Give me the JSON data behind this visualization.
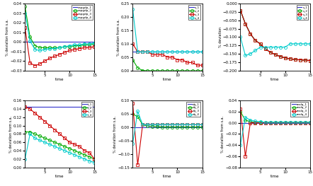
{
  "time": [
    1,
    2,
    3,
    4,
    5,
    6,
    7,
    8,
    9,
    10,
    11,
    12,
    13,
    14,
    15
  ],
  "colors": {
    "1": "#0000cc",
    "2": "#00aa00",
    "3": "#cc0000",
    "4": "#00cccc"
  },
  "markers": {
    "1": "none",
    "2": "o",
    "3": "s",
    "4": "o"
  },
  "panel_top_left": {
    "ylabel": "% deviation from s.a.",
    "xlabel": "time",
    "ylim": [
      -0.03,
      0.04
    ],
    "legend_labels": [
      "capgdp_1",
      "capgdp_2",
      "capgdp_3",
      "capgdp_4"
    ],
    "series": {
      "1": [
        0.0,
        0.0,
        0.0,
        0.0,
        0.0,
        0.0,
        0.0,
        0.0,
        0.0,
        0.0,
        0.0,
        0.0,
        0.0,
        0.0,
        0.0
      ],
      "2": [
        0.037,
        0.005,
        -0.004,
        -0.006,
        -0.006,
        -0.006,
        -0.006,
        -0.006,
        -0.005,
        -0.005,
        -0.004,
        -0.004,
        -0.003,
        -0.003,
        -0.002
      ],
      "3": [
        0.015,
        -0.022,
        -0.025,
        -0.023,
        -0.02,
        -0.017,
        -0.015,
        -0.013,
        -0.011,
        -0.009,
        -0.008,
        -0.007,
        -0.006,
        -0.006,
        -0.005
      ],
      "4": [
        0.03,
        0.001,
        -0.008,
        -0.009,
        -0.008,
        -0.007,
        -0.007,
        -0.006,
        -0.005,
        -0.004,
        -0.003,
        -0.003,
        -0.002,
        -0.002,
        -0.001
      ]
    }
  },
  "panel_top_mid": {
    "ylabel": "% deviation from s.a.",
    "xlabel": "time",
    "ylim": [
      0.0,
      0.25
    ],
    "legend_labels": [
      "x_1",
      "x_2",
      "x_3",
      "x_4"
    ],
    "series": {
      "1": [
        0.07,
        0.07,
        0.07,
        0.07,
        0.07,
        0.07,
        0.07,
        0.07,
        0.07,
        0.07,
        0.07,
        0.07,
        0.07,
        0.07,
        0.07
      ],
      "2": [
        0.04,
        0.01,
        0.0,
        -0.001,
        -0.001,
        -0.001,
        -0.001,
        -0.001,
        -0.001,
        -0.001,
        -0.001,
        -0.001,
        -0.001,
        -0.001,
        -0.001
      ],
      "3": [
        0.1,
        0.07,
        0.07,
        0.07,
        0.06,
        0.06,
        0.06,
        0.05,
        0.05,
        0.04,
        0.04,
        0.03,
        0.03,
        0.02,
        0.02
      ],
      "4": [
        0.23,
        0.07,
        0.07,
        0.07,
        0.07,
        0.07,
        0.07,
        0.07,
        0.07,
        0.07,
        0.07,
        0.07,
        0.07,
        0.07,
        0.07
      ]
    }
  },
  "panel_top_right": {
    "ylabel": "% deviation",
    "xlabel": "time",
    "ylim": [
      -0.2,
      0.0
    ],
    "legend_labels": [
      "s_1",
      "s_2",
      "s_3",
      "s_4"
    ],
    "series": {
      "1": [
        -0.02,
        -0.06,
        -0.09,
        -0.11,
        -0.12,
        -0.135,
        -0.145,
        -0.152,
        -0.158,
        -0.162,
        -0.165,
        -0.167,
        -0.168,
        -0.169,
        -0.17
      ],
      "2": [
        -0.02,
        -0.06,
        -0.09,
        -0.11,
        -0.12,
        -0.135,
        -0.145,
        -0.152,
        -0.158,
        -0.162,
        -0.165,
        -0.167,
        -0.168,
        -0.169,
        -0.17
      ],
      "3": [
        -0.02,
        -0.06,
        -0.09,
        -0.11,
        -0.12,
        -0.135,
        -0.145,
        -0.152,
        -0.158,
        -0.162,
        -0.165,
        -0.167,
        -0.168,
        -0.169,
        -0.17
      ],
      "4": [
        -0.1,
        -0.155,
        -0.15,
        -0.14,
        -0.13,
        -0.13,
        -0.13,
        -0.13,
        -0.13,
        -0.13,
        -0.12,
        -0.12,
        -0.12,
        -0.12,
        -0.12
      ]
    }
  },
  "panel_bot_left": {
    "ylabel": "% deviation from s.a.",
    "xlabel": "time",
    "ylim": [
      0.0,
      0.16
    ],
    "legend_labels": [
      "t_1",
      "t_2",
      "t_3",
      "t_4"
    ],
    "series": {
      "1": [
        0.145,
        0.145,
        0.145,
        0.145,
        0.145,
        0.145,
        0.145,
        0.145,
        0.145,
        0.145,
        0.145,
        0.145,
        0.145,
        0.145,
        0.145
      ],
      "2": [
        0.085,
        0.085,
        0.08,
        0.075,
        0.07,
        0.065,
        0.06,
        0.055,
        0.05,
        0.045,
        0.04,
        0.035,
        0.03,
        0.025,
        0.02
      ],
      "3": [
        0.145,
        0.14,
        0.13,
        0.12,
        0.11,
        0.1,
        0.09,
        0.08,
        0.07,
        0.06,
        0.055,
        0.05,
        0.04,
        0.035,
        0.02
      ],
      "4": [
        0.02,
        0.08,
        0.07,
        0.065,
        0.06,
        0.055,
        0.05,
        0.045,
        0.04,
        0.035,
        0.03,
        0.025,
        0.02,
        0.015,
        0.012
      ]
    }
  },
  "panel_bot_mid": {
    "ylabel": "% deviation from s.a.",
    "xlabel": "time",
    "ylim": [
      -0.15,
      0.1
    ],
    "legend_labels": [
      "dq_1",
      "dq_2",
      "dq_3",
      "dq_4"
    ],
    "series": {
      "1": [
        0.0,
        0.0,
        0.0,
        0.0,
        0.0,
        0.0,
        0.0,
        0.0,
        0.0,
        0.0,
        0.0,
        0.0,
        0.0,
        0.0,
        0.0
      ],
      "2": [
        0.05,
        0.04,
        0.01,
        0.005,
        0.003,
        0.002,
        0.001,
        0.001,
        0.001,
        0.001,
        0.001,
        0.001,
        0.001,
        0.001,
        0.001
      ],
      "3": [
        0.09,
        -0.14,
        0.01,
        0.01,
        0.01,
        0.01,
        0.01,
        0.01,
        0.01,
        0.01,
        0.01,
        0.01,
        0.01,
        0.01,
        0.01
      ],
      "4": [
        -0.06,
        0.06,
        0.01,
        0.01,
        0.01,
        0.01,
        0.01,
        0.01,
        0.01,
        0.01,
        0.01,
        0.01,
        0.01,
        0.01,
        0.01
      ]
    }
  },
  "panel_bot_right": {
    "ylabel": "% deviation from s.a.",
    "xlabel": "time",
    "ylim": [
      -0.08,
      0.04
    ],
    "legend_labels": [
      "realq_1",
      "realq_2",
      "realq_3",
      "realq_4"
    ],
    "series": {
      "1": [
        0.0,
        0.0,
        0.0,
        0.0,
        0.0,
        0.0,
        0.0,
        0.0,
        0.0,
        0.0,
        0.0,
        0.0,
        0.0,
        0.0,
        0.0
      ],
      "2": [
        0.02,
        0.005,
        0.002,
        0.001,
        0.001,
        0.001,
        0.001,
        0.001,
        0.001,
        0.001,
        0.001,
        0.001,
        0.001,
        0.001,
        0.001
      ],
      "3": [
        0.025,
        -0.06,
        0.0,
        0.0,
        0.0,
        0.0,
        0.0,
        0.0,
        0.0,
        0.0,
        0.0,
        0.0,
        0.0,
        0.0,
        0.0
      ],
      "4": [
        -0.04,
        0.01,
        0.005,
        0.003,
        0.002,
        0.001,
        0.001,
        0.001,
        0.001,
        0.001,
        0.001,
        0.001,
        0.001,
        0.001,
        0.001
      ]
    }
  }
}
